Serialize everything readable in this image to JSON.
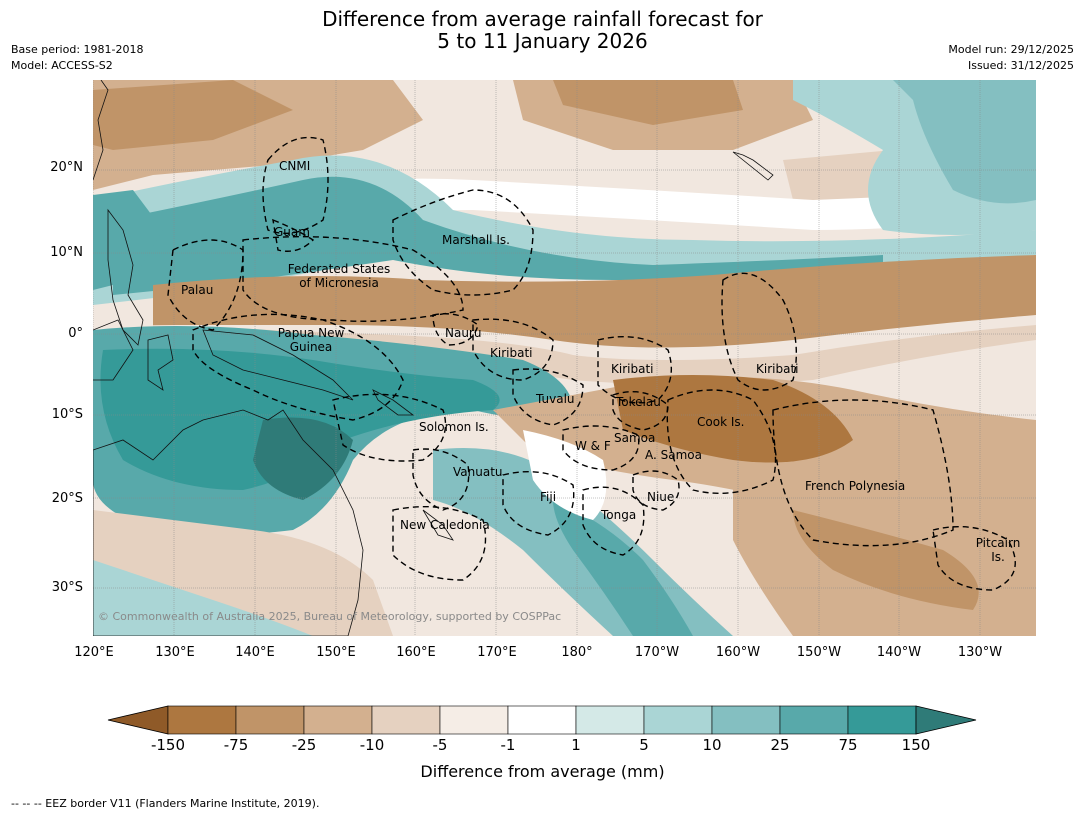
{
  "title": {
    "line1": "Difference from average rainfall forecast for",
    "line2": "5 to 11 January 2026"
  },
  "meta_left": {
    "base_period": "Base period: 1981-2018",
    "model": "Model: ACCESS-S2"
  },
  "meta_right": {
    "model_run": "Model run: 29/12/2025",
    "issued": "Issued: 31/12/2025"
  },
  "axes": {
    "latitude_labels": [
      "20°N",
      "10°N",
      "0°",
      "10°S",
      "20°S",
      "30°S"
    ],
    "longitude_labels": [
      "120°E",
      "130°E",
      "140°E",
      "150°E",
      "160°E",
      "170°E",
      "180°",
      "170°W",
      "160°W",
      "150°W",
      "140°W",
      "130°W"
    ]
  },
  "places": {
    "cnmi": "CNMI",
    "guam": "Guam",
    "marshall": "Marshall Is.",
    "fsm": "Federated States of Micronesia",
    "palau": "Palau",
    "png": "Papua New Guinea",
    "nauru": "Nauru",
    "kiribati_west": "Kiribati",
    "kiribati_central": "Kiribati",
    "kiribati_east": "Kiribati",
    "tuvalu": "Tuvalu",
    "tokelau": "Tokelau",
    "cook": "Cook Is.",
    "solomon": "Solomon Is.",
    "samoa": "Samoa",
    "wf": "W & F",
    "asamoa": "A. Samoa",
    "vanuatu": "Vanuatu",
    "fiji": "Fiji",
    "niue": "Niue",
    "tonga": "Tonga",
    "new_caledonia": "New Caledonia",
    "french_polynesia": "French Polynesia",
    "pitcairn": "Pitcairn Is."
  },
  "copyright": "© Commonwealth of Australia 2025, Bureau of Meteorology, supported by COSPPac",
  "colorbar": {
    "ticks": [
      "-150",
      "-75",
      "-25",
      "-10",
      "-5",
      "-1",
      "1",
      "5",
      "10",
      "25",
      "75",
      "150"
    ],
    "colors": [
      "#8f5a28",
      "#ad7740",
      "#c09468",
      "#d3b08f",
      "#e5d1c0",
      "#f5ede6",
      "#ffffff",
      "#d4e9e7",
      "#aad5d5",
      "#84bfc1",
      "#58a9aa",
      "#359a98",
      "#2f7b78"
    ],
    "label": "Difference from average (mm)"
  },
  "eez_note": "-- -- -- EEZ border V11 (Flanders Marine Institute, 2019)."
}
